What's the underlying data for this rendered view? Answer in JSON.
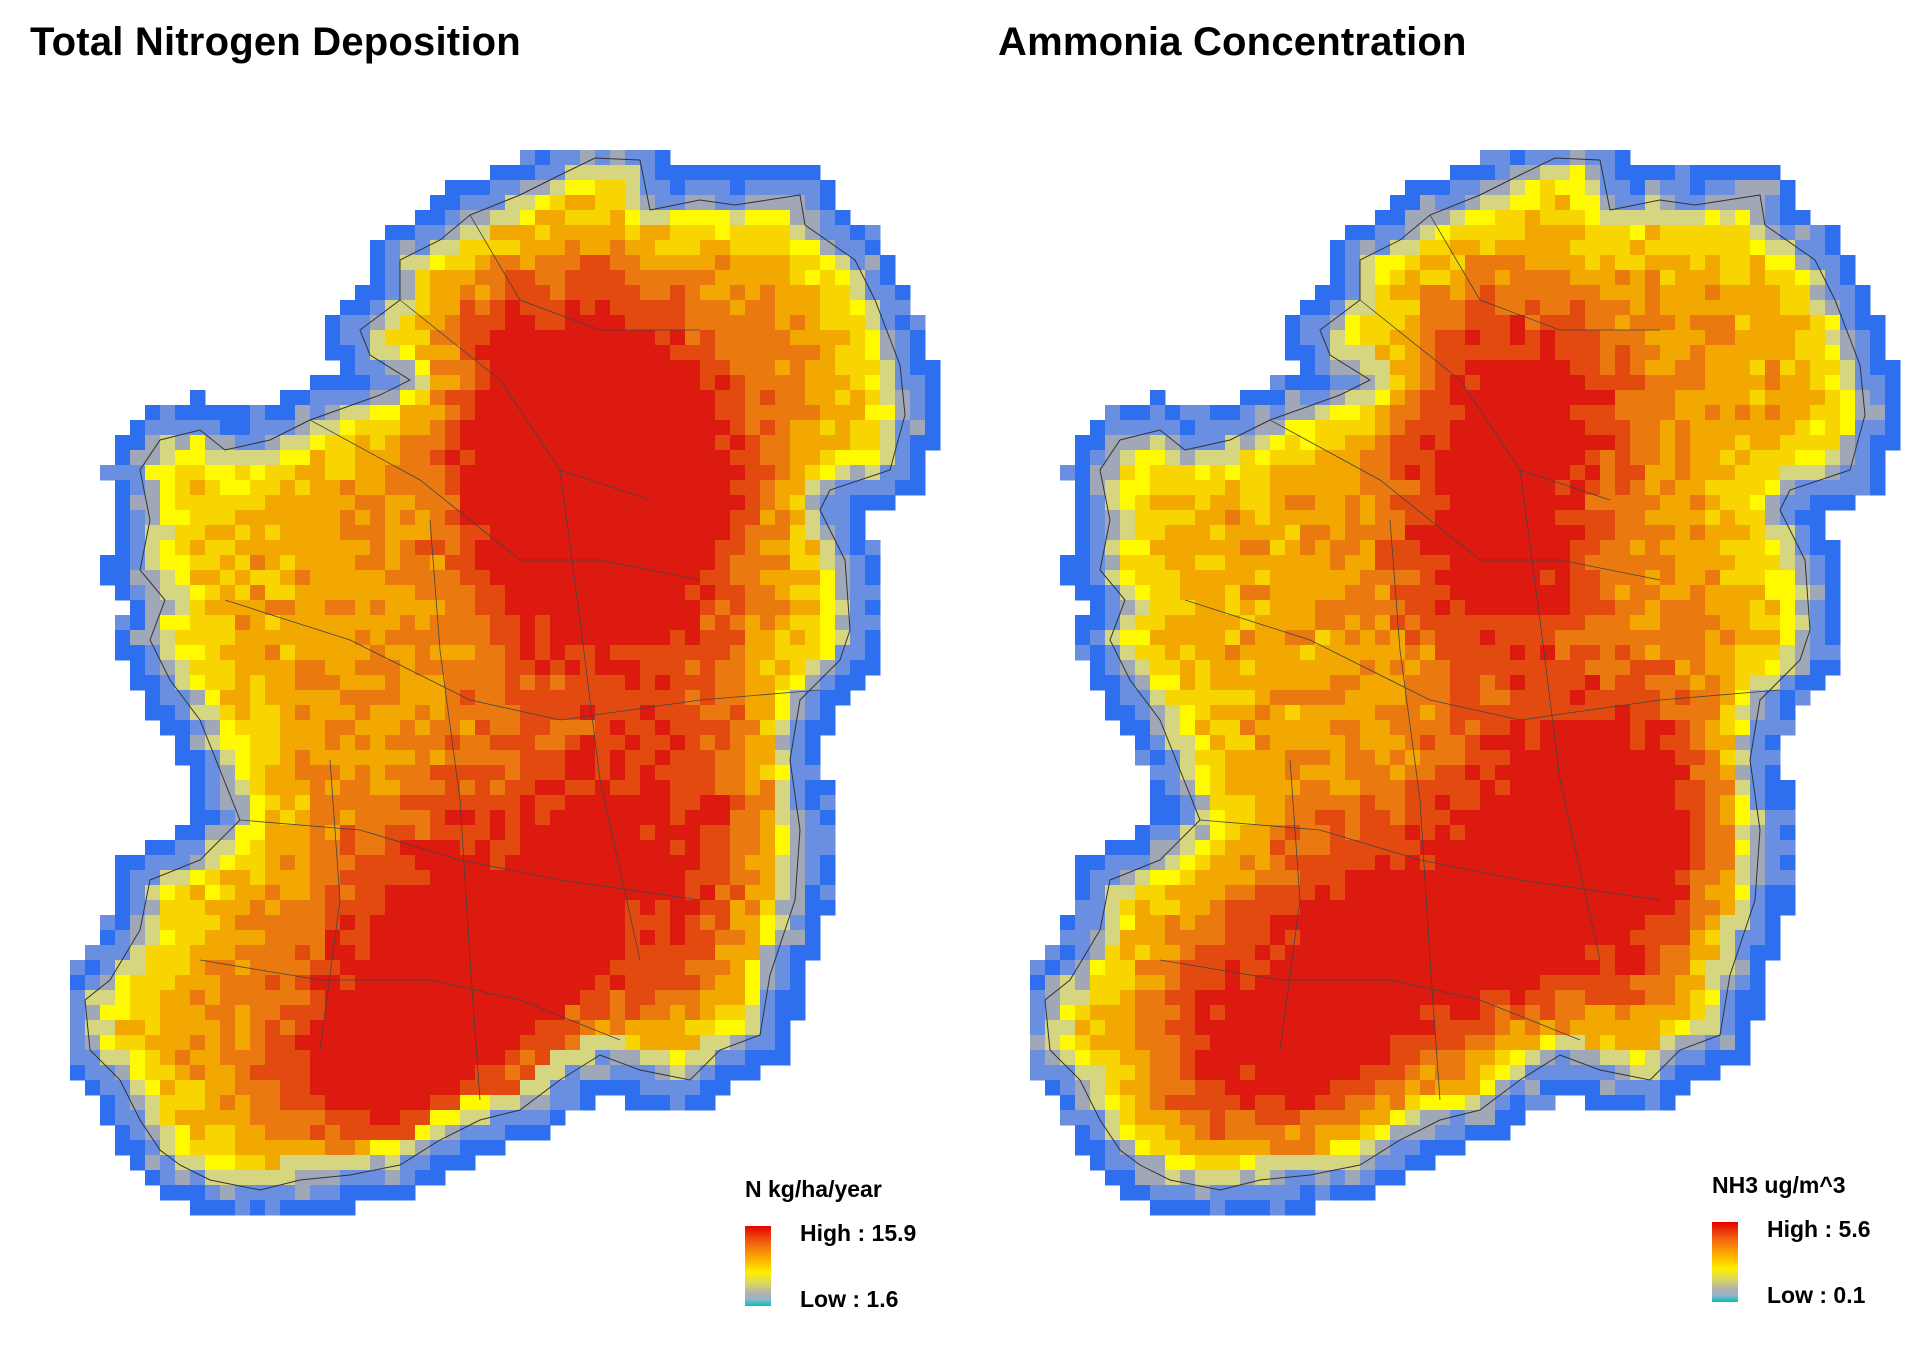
{
  "maps": [
    {
      "id": "nitrogen",
      "title": "Total Nitrogen Deposition",
      "legend": {
        "unit_label": "N kg/ha/year",
        "high_label": "High : 15.9",
        "low_label": "Low : 1.6",
        "high_value": 15.9,
        "low_value": 1.6
      },
      "colors": [
        "#2e6ff0",
        "#6a8fe0",
        "#a0a8b8",
        "#d6d680",
        "#fffa00",
        "#f8d400",
        "#f2a800",
        "#ea7a10",
        "#e24a10",
        "#dc1a10"
      ]
    },
    {
      "id": "ammonia",
      "title": "Ammonia Concentration",
      "legend": {
        "unit_label": "NH3 ug/m^3",
        "high_label": "High : 5.6",
        "low_label": "Low : 0.1",
        "high_value": 5.6,
        "low_value": 0.1
      },
      "colors": [
        "#2e6ff0",
        "#6a8fe0",
        "#a0a8b8",
        "#d6d680",
        "#fffa00",
        "#f8d400",
        "#f2a800",
        "#ea7a10",
        "#e24a10",
        "#dc1a10"
      ]
    }
  ]
}
